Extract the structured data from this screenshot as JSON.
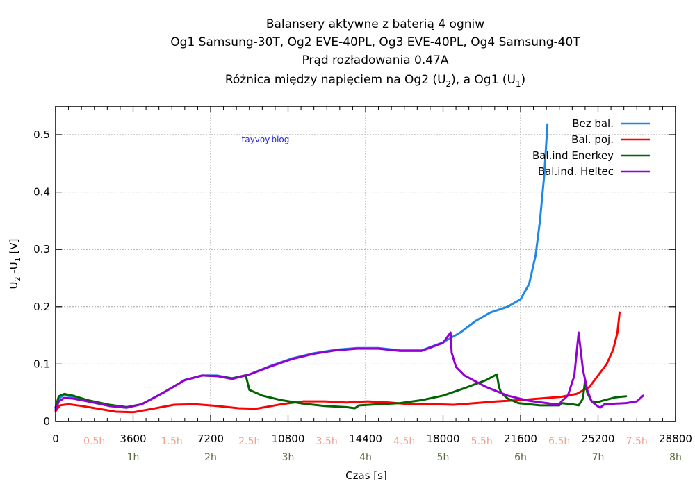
{
  "chart_data": {
    "type": "line",
    "title_lines": [
      "Balansery aktywne z baterią 4 ogniw",
      "Og1 Samsung-30T,  Og2 EVE-40PL, Og3 EVE-40PL, Og4 Samsung-40T",
      "Prąd rozładowania 0.47A"
    ],
    "title_last": {
      "prefix": "Różnica między napięciem na Og2 (U",
      "sub1": "2",
      "mid": "), a Og1 (U",
      "sub2": "1",
      "suffix": ")"
    },
    "xlabel": "Czas [s]",
    "ylabel": {
      "a": "U",
      "a_sub": "2",
      "b": " -U",
      "b_sub": "1",
      "c": " [V]"
    },
    "xlim": [
      0,
      28800
    ],
    "ylim": [
      0,
      0.55
    ],
    "grid": true,
    "legend_position": "top-right",
    "watermark": "tayvoy.blog",
    "x_ticks": [
      0,
      3600,
      7200,
      10800,
      14400,
      18000,
      21600,
      25200,
      28800
    ],
    "y_ticks": [
      0,
      0.1,
      0.2,
      0.3,
      0.4,
      0.5
    ],
    "y_tick_labels": [
      "0",
      "0.1",
      "0.2",
      "0.3",
      "0.4",
      "0.5"
    ],
    "x_tick_labels": [
      "0",
      "3600",
      "7200",
      "10800",
      "14400",
      "18000",
      "21600",
      "25200",
      "28800"
    ],
    "half_hour_labels": [
      {
        "t": 1800,
        "label": "0.5h"
      },
      {
        "t": 5400,
        "label": "1.5h"
      },
      {
        "t": 9000,
        "label": "2.5h"
      },
      {
        "t": 12600,
        "label": "3.5h"
      },
      {
        "t": 16200,
        "label": "4.5h"
      },
      {
        "t": 19800,
        "label": "5.5h"
      },
      {
        "t": 23400,
        "label": "6.5h"
      },
      {
        "t": 27000,
        "label": "7.5h"
      }
    ],
    "hour_labels": [
      {
        "t": 3600,
        "label": "1h"
      },
      {
        "t": 7200,
        "label": "2h"
      },
      {
        "t": 10800,
        "label": "3h"
      },
      {
        "t": 14400,
        "label": "4h"
      },
      {
        "t": 18000,
        "label": "5h"
      },
      {
        "t": 21600,
        "label": "6h"
      },
      {
        "t": 25200,
        "label": "7h"
      },
      {
        "t": 28800,
        "label": "8h"
      }
    ],
    "colors": {
      "half": "#f0a08a",
      "hour": "#5a6b3c"
    },
    "series": [
      {
        "name": "Bez bal.",
        "color": "#1e88e5",
        "x": [
          0,
          150,
          400,
          800,
          1500,
          2500,
          3300,
          4000,
          5000,
          6000,
          6800,
          7500,
          8200,
          9000,
          10000,
          11000,
          12000,
          13000,
          14000,
          15000,
          16000,
          17000,
          18000,
          18800,
          19500,
          20200,
          21000,
          21600,
          22000,
          22300,
          22500,
          22700,
          22850
        ],
        "y": [
          0.022,
          0.04,
          0.046,
          0.043,
          0.035,
          0.027,
          0.024,
          0.03,
          0.05,
          0.072,
          0.08,
          0.08,
          0.075,
          0.082,
          0.097,
          0.11,
          0.119,
          0.125,
          0.128,
          0.128,
          0.124,
          0.124,
          0.138,
          0.155,
          0.175,
          0.19,
          0.2,
          0.213,
          0.24,
          0.29,
          0.35,
          0.43,
          0.518
        ]
      },
      {
        "name": "Bal. poj.",
        "color": "#ff0000",
        "x": [
          0,
          200,
          600,
          1200,
          2000,
          2800,
          3600,
          4500,
          5500,
          6500,
          7500,
          8500,
          9300,
          10500,
          11500,
          12500,
          13500,
          14500,
          15500,
          16500,
          17500,
          18500,
          19500,
          20500,
          21500,
          22500,
          23500,
          24200,
          24800,
          25200,
          25600,
          25900,
          26100,
          26200
        ],
        "y": [
          0.018,
          0.028,
          0.03,
          0.027,
          0.022,
          0.017,
          0.016,
          0.022,
          0.029,
          0.03,
          0.027,
          0.023,
          0.022,
          0.03,
          0.035,
          0.035,
          0.033,
          0.035,
          0.033,
          0.03,
          0.03,
          0.029,
          0.032,
          0.035,
          0.037,
          0.04,
          0.043,
          0.048,
          0.06,
          0.08,
          0.1,
          0.125,
          0.155,
          0.19
        ]
      },
      {
        "name": "Bal.ind Enerkey",
        "color": "#006400",
        "x": [
          0,
          150,
          400,
          800,
          1500,
          2500,
          3300,
          4000,
          5000,
          6000,
          6800,
          7500,
          8200,
          8800,
          8850,
          9000,
          9600,
          10500,
          11500,
          12500,
          13500,
          13900,
          14100,
          15000,
          16000,
          17000,
          18000,
          19000,
          20000,
          20500,
          20600,
          20700,
          21000,
          21500,
          22500,
          23400,
          23500,
          24000,
          24300,
          24500,
          24600,
          24700,
          24900,
          25200,
          25600,
          26000,
          26500
        ],
        "y": [
          0.025,
          0.044,
          0.048,
          0.045,
          0.037,
          0.029,
          0.025,
          0.03,
          0.05,
          0.072,
          0.08,
          0.079,
          0.075,
          0.08,
          0.078,
          0.055,
          0.045,
          0.037,
          0.031,
          0.027,
          0.025,
          0.023,
          0.028,
          0.03,
          0.032,
          0.037,
          0.045,
          0.058,
          0.072,
          0.082,
          0.06,
          0.05,
          0.04,
          0.032,
          0.028,
          0.028,
          0.032,
          0.03,
          0.028,
          0.04,
          0.072,
          0.05,
          0.035,
          0.034,
          0.038,
          0.042,
          0.044
        ]
      },
      {
        "name": "Bal.ind. Heltec",
        "color": "#9400d3",
        "x": [
          0,
          150,
          400,
          800,
          1500,
          2500,
          3300,
          4000,
          5000,
          6000,
          6800,
          7500,
          8200,
          9000,
          10000,
          11000,
          12000,
          13000,
          14000,
          15000,
          16000,
          17000,
          18000,
          18350,
          18400,
          18600,
          19000,
          20000,
          21000,
          22000,
          23000,
          23400,
          23500,
          23800,
          24100,
          24300,
          24500,
          24700,
          24900,
          25200,
          25300,
          25500,
          26000,
          26500,
          27000,
          27300
        ],
        "y": [
          0.02,
          0.035,
          0.041,
          0.04,
          0.035,
          0.027,
          0.024,
          0.03,
          0.05,
          0.072,
          0.08,
          0.079,
          0.074,
          0.082,
          0.096,
          0.109,
          0.118,
          0.124,
          0.127,
          0.127,
          0.123,
          0.123,
          0.137,
          0.155,
          0.12,
          0.095,
          0.08,
          0.06,
          0.045,
          0.036,
          0.031,
          0.03,
          0.035,
          0.045,
          0.08,
          0.155,
          0.09,
          0.055,
          0.035,
          0.026,
          0.024,
          0.03,
          0.031,
          0.032,
          0.035,
          0.045
        ]
      }
    ]
  }
}
